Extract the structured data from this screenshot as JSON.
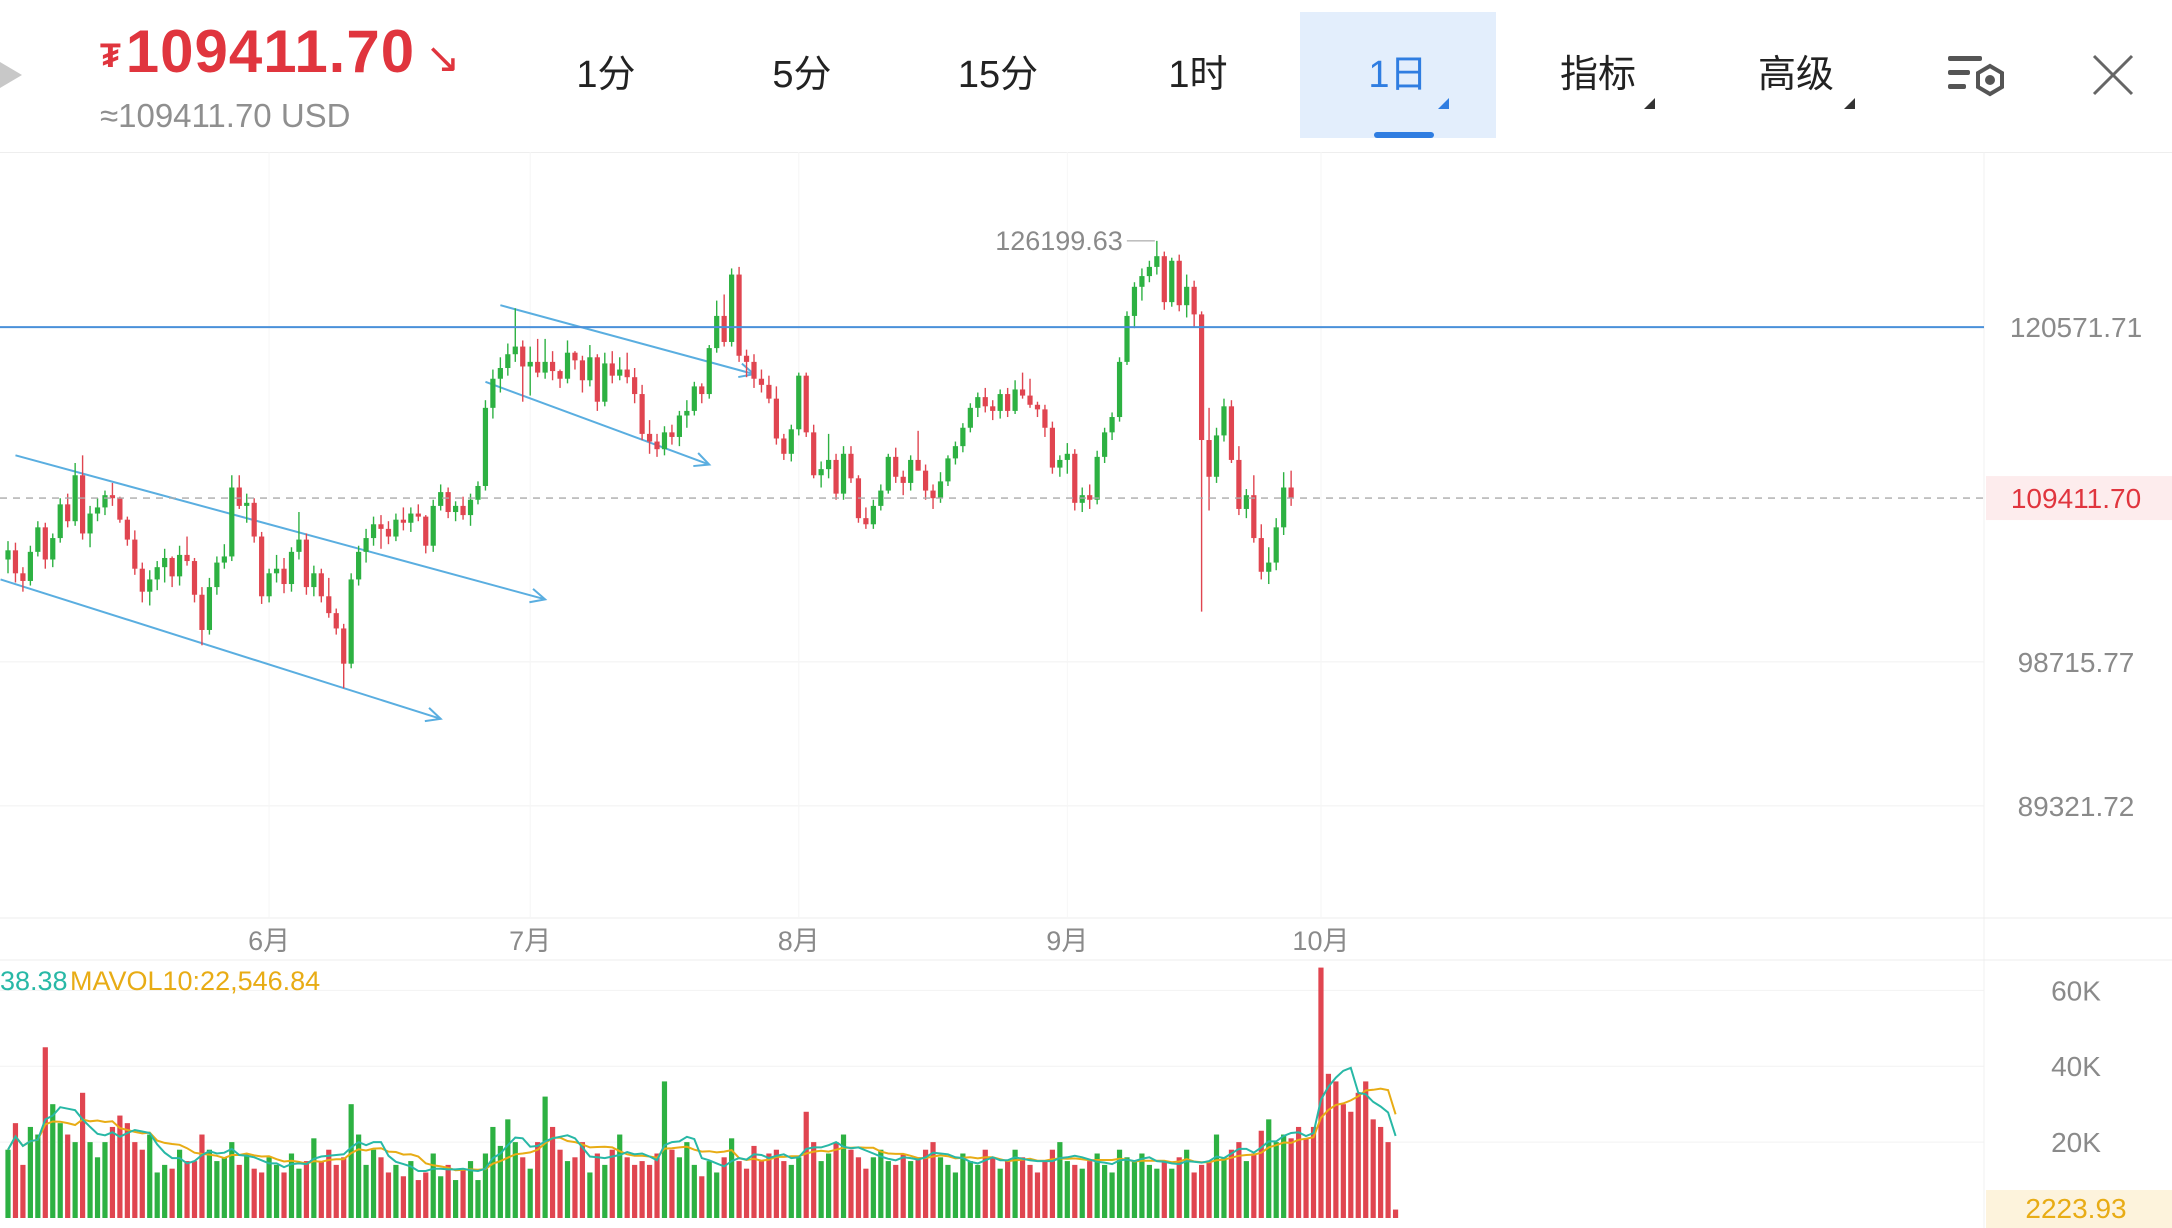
{
  "header": {
    "currency_symbol": "₮",
    "price": "109411.70",
    "trend_arrow": "↘",
    "usd_equiv": "≈109411.70 USD",
    "price_color": "#e0353e"
  },
  "tabs": [
    {
      "label": "1分",
      "active": false,
      "dropdown": false
    },
    {
      "label": "5分",
      "active": false,
      "dropdown": false
    },
    {
      "label": "15分",
      "active": false,
      "dropdown": false
    },
    {
      "label": "1时",
      "active": false,
      "dropdown": false
    },
    {
      "label": "1日",
      "active": true,
      "dropdown": true
    },
    {
      "label": "指标",
      "active": false,
      "dropdown": true
    },
    {
      "label": "高级",
      "active": false,
      "dropdown": true
    }
  ],
  "icons": {
    "play": "play-icon",
    "settings": "chart-settings-icon",
    "close": "close-icon"
  },
  "colors": {
    "up": "#2db142",
    "down": "#e04550",
    "accent": "#2f7de1",
    "trendline": "#5aaee0",
    "mavol5": "#28b8a6",
    "mavol10": "#e8ac15"
  },
  "chart_data": {
    "type": "candlestick",
    "x_labels": [
      "6月",
      "7月",
      "8月",
      "9月",
      "10月"
    ],
    "y_ticks": [
      "120571.71",
      "98715.77",
      "89321.72"
    ],
    "ylim": [
      82000,
      132000
    ],
    "current_price_label": "109411.70",
    "high_annotation": {
      "value": 126199.63,
      "label": "126199.63"
    },
    "horizontal_line": 120571.71,
    "candles": [
      [
        105400,
        106600,
        104500,
        106000
      ],
      [
        106000,
        106500,
        103900,
        104500
      ],
      [
        104500,
        104900,
        103300,
        104000
      ],
      [
        104000,
        106300,
        103700,
        105900
      ],
      [
        105900,
        107900,
        105600,
        107500
      ],
      [
        107500,
        107800,
        104800,
        105400
      ],
      [
        105400,
        107100,
        104900,
        106800
      ],
      [
        106800,
        109400,
        106500,
        109000
      ],
      [
        109000,
        109700,
        107500,
        107900
      ],
      [
        107900,
        111700,
        107600,
        110900
      ],
      [
        110900,
        112200,
        106700,
        107100
      ],
      [
        107100,
        108900,
        106200,
        108400
      ],
      [
        108400,
        109400,
        107900,
        108800
      ],
      [
        108800,
        109900,
        108300,
        109600
      ],
      [
        109600,
        110400,
        108900,
        109400
      ],
      [
        109400,
        109500,
        107800,
        108000
      ],
      [
        108000,
        108200,
        106300,
        106700
      ],
      [
        106700,
        107300,
        104400,
        104800
      ],
      [
        104800,
        105200,
        102600,
        103300
      ],
      [
        103300,
        104700,
        102400,
        104100
      ],
      [
        104100,
        105300,
        103400,
        104900
      ],
      [
        104900,
        106100,
        103900,
        105500
      ],
      [
        105500,
        105600,
        103600,
        104300
      ],
      [
        104300,
        106300,
        103700,
        105700
      ],
      [
        105700,
        106900,
        105000,
        105300
      ],
      [
        105300,
        105500,
        102600,
        103100
      ],
      [
        103100,
        103600,
        99800,
        100800
      ],
      [
        100800,
        104200,
        100500,
        103600
      ],
      [
        103600,
        105600,
        103100,
        105200
      ],
      [
        105200,
        106400,
        104800,
        105600
      ],
      [
        105600,
        110900,
        105300,
        110100
      ],
      [
        110100,
        110900,
        108700,
        108900
      ],
      [
        108900,
        109700,
        107800,
        109100
      ],
      [
        109100,
        109400,
        106500,
        106900
      ],
      [
        106900,
        107200,
        102500,
        103000
      ],
      [
        103000,
        104800,
        102600,
        104500
      ],
      [
        104500,
        105700,
        103900,
        104800
      ],
      [
        104800,
        105500,
        103200,
        103800
      ],
      [
        103800,
        106200,
        103300,
        105900
      ],
      [
        105900,
        108500,
        105400,
        106700
      ],
      [
        106700,
        107100,
        103100,
        103600
      ],
      [
        103600,
        105000,
        103000,
        104500
      ],
      [
        104500,
        104800,
        102600,
        103000
      ],
      [
        103000,
        104200,
        101600,
        101900
      ],
      [
        101900,
        102200,
        100500,
        100900
      ],
      [
        100900,
        101200,
        97000,
        98600
      ],
      [
        98600,
        104500,
        98300,
        104100
      ],
      [
        104100,
        106300,
        103700,
        105900
      ],
      [
        105900,
        107400,
        105200,
        106800
      ],
      [
        106800,
        108200,
        106300,
        107700
      ],
      [
        107700,
        108300,
        106100,
        107400
      ],
      [
        107400,
        107900,
        106400,
        106900
      ],
      [
        106900,
        108400,
        106600,
        108000
      ],
      [
        108000,
        108800,
        107300,
        107800
      ],
      [
        107800,
        108800,
        107200,
        108400
      ],
      [
        108400,
        109000,
        107900,
        108200
      ],
      [
        108200,
        108300,
        105800,
        106300
      ],
      [
        106300,
        109300,
        105900,
        108900
      ],
      [
        108900,
        110300,
        108600,
        109800
      ],
      [
        109800,
        110100,
        108100,
        108500
      ],
      [
        108500,
        109200,
        107900,
        108900
      ],
      [
        108900,
        109500,
        108000,
        108300
      ],
      [
        108300,
        109700,
        107600,
        109300
      ],
      [
        109300,
        110500,
        109000,
        110200
      ],
      [
        110200,
        115800,
        109900,
        115300
      ],
      [
        115300,
        117800,
        114600,
        117200
      ],
      [
        117200,
        118600,
        116300,
        117900
      ],
      [
        117900,
        119500,
        117400,
        118800
      ],
      [
        118800,
        121800,
        118300,
        119300
      ],
      [
        119300,
        119700,
        115700,
        118000
      ],
      [
        118000,
        119300,
        116100,
        118300
      ],
      [
        118300,
        119800,
        117300,
        117600
      ],
      [
        117600,
        119800,
        117200,
        118300
      ],
      [
        118300,
        119000,
        117100,
        117700
      ],
      [
        117700,
        117800,
        116600,
        117200
      ],
      [
        117200,
        119700,
        116900,
        118900
      ],
      [
        118900,
        119000,
        117800,
        118400
      ],
      [
        118400,
        118700,
        116300,
        117100
      ],
      [
        117100,
        119400,
        116700,
        118600
      ],
      [
        118600,
        118800,
        115100,
        115700
      ],
      [
        115700,
        118900,
        115400,
        118200
      ],
      [
        118200,
        119000,
        116900,
        117400
      ],
      [
        117400,
        118600,
        117100,
        117800
      ],
      [
        117800,
        118900,
        116900,
        117300
      ],
      [
        117300,
        117900,
        115600,
        116200
      ],
      [
        116200,
        116800,
        113200,
        113600
      ],
      [
        113600,
        114500,
        112300,
        113100
      ],
      [
        113100,
        113600,
        112100,
        112600
      ],
      [
        112600,
        114100,
        112200,
        113700
      ],
      [
        113700,
        114200,
        112900,
        113400
      ],
      [
        113400,
        115100,
        112800,
        114800
      ],
      [
        114800,
        115800,
        114000,
        115100
      ],
      [
        115100,
        117000,
        114800,
        116700
      ],
      [
        116700,
        116900,
        115600,
        116200
      ],
      [
        116200,
        119400,
        115900,
        119200
      ],
      [
        119200,
        122300,
        118900,
        121300
      ],
      [
        121300,
        122700,
        119300,
        119600
      ],
      [
        119600,
        124400,
        119300,
        124000
      ],
      [
        124000,
        124500,
        118300,
        118700
      ],
      [
        118700,
        119100,
        117300,
        118300
      ],
      [
        118300,
        118800,
        116600,
        117200
      ],
      [
        117200,
        117800,
        116300,
        116800
      ],
      [
        116800,
        117400,
        115600,
        115900
      ],
      [
        115900,
        116700,
        112900,
        113300
      ],
      [
        113300,
        113600,
        111900,
        112300
      ],
      [
        112300,
        114200,
        111800,
        113900
      ],
      [
        113900,
        117600,
        113500,
        117400
      ],
      [
        117400,
        117600,
        113400,
        113700
      ],
      [
        113700,
        114200,
        110700,
        110900
      ],
      [
        110900,
        111800,
        110100,
        111300
      ],
      [
        111300,
        113600,
        110700,
        111900
      ],
      [
        111900,
        112300,
        109300,
        109700
      ],
      [
        109700,
        112800,
        109300,
        112300
      ],
      [
        112300,
        112800,
        110400,
        110700
      ],
      [
        110700,
        110900,
        107800,
        108100
      ],
      [
        108100,
        108800,
        107400,
        107700
      ],
      [
        107700,
        109300,
        107400,
        108900
      ],
      [
        108900,
        110300,
        108600,
        109900
      ],
      [
        109900,
        112300,
        109700,
        112100
      ],
      [
        112100,
        112700,
        110400,
        110800
      ],
      [
        110800,
        111200,
        109600,
        110400
      ],
      [
        110400,
        112200,
        109900,
        111900
      ],
      [
        111900,
        113800,
        111200,
        111200
      ],
      [
        111200,
        111600,
        109300,
        109900
      ],
      [
        109900,
        110300,
        108700,
        109400
      ],
      [
        109400,
        111100,
        109100,
        110500
      ],
      [
        110500,
        112200,
        110200,
        112000
      ],
      [
        112000,
        113100,
        111600,
        112800
      ],
      [
        112800,
        114300,
        112400,
        114000
      ],
      [
        114000,
        115600,
        113700,
        115300
      ],
      [
        115300,
        116300,
        114700,
        116000
      ],
      [
        116000,
        116600,
        115000,
        115400
      ],
      [
        115400,
        115800,
        114500,
        115100
      ],
      [
        115100,
        116500,
        114600,
        116200
      ],
      [
        116200,
        116600,
        114700,
        115100
      ],
      [
        115100,
        117100,
        114900,
        116500
      ],
      [
        116500,
        117600,
        115900,
        116100
      ],
      [
        116100,
        117200,
        115300,
        115500
      ],
      [
        115500,
        115700,
        114700,
        115200
      ],
      [
        115200,
        115500,
        113400,
        114000
      ],
      [
        114000,
        114400,
        111000,
        111400
      ],
      [
        111400,
        112200,
        110800,
        111900
      ],
      [
        111900,
        113000,
        111000,
        112300
      ],
      [
        112300,
        112600,
        108600,
        109100
      ],
      [
        109100,
        110100,
        108500,
        109600
      ],
      [
        109600,
        110300,
        108700,
        109300
      ],
      [
        109300,
        112500,
        109000,
        112100
      ],
      [
        112100,
        114000,
        111700,
        113700
      ],
      [
        113700,
        115000,
        113200,
        114700
      ],
      [
        114700,
        118600,
        114400,
        118300
      ],
      [
        118300,
        121600,
        118100,
        121300
      ],
      [
        121300,
        123500,
        120500,
        123200
      ],
      [
        123200,
        124400,
        122300,
        123900
      ],
      [
        123900,
        124900,
        123500,
        124500
      ],
      [
        124500,
        126199.63,
        124000,
        125200
      ],
      [
        125200,
        125500,
        121700,
        122200
      ],
      [
        122200,
        125100,
        121900,
        124900
      ],
      [
        124900,
        125300,
        121600,
        122000
      ],
      [
        122000,
        124000,
        121200,
        123200
      ],
      [
        123200,
        123600,
        120600,
        121400
      ],
      [
        121400,
        121600,
        102000,
        113200
      ],
      [
        113200,
        115300,
        108600,
        110800
      ],
      [
        110800,
        114000,
        110400,
        113500
      ],
      [
        113500,
        115900,
        113100,
        115400
      ],
      [
        115400,
        115800,
        111700,
        111900
      ],
      [
        111900,
        112800,
        108300,
        108700
      ],
      [
        108700,
        110000,
        108100,
        109600
      ],
      [
        109600,
        110900,
        106500,
        106800
      ],
      [
        106800,
        107700,
        104100,
        104600
      ],
      [
        104600,
        106200,
        103800,
        105200
      ],
      [
        105200,
        108100,
        104700,
        107500
      ],
      [
        107500,
        111100,
        107000,
        110100
      ],
      [
        110100,
        111200,
        108900,
        109411.7
      ]
    ],
    "volume": {
      "label_mavol5": "38.38",
      "label_mavol10": "MAVOL10:22,546.84",
      "y_ticks": [
        "60K",
        "40K",
        "20K"
      ],
      "ylim": [
        0,
        68000
      ],
      "last_value_label": "2223.93",
      "values": [
        18000,
        25000,
        14000,
        24000,
        22000,
        45000,
        30000,
        25000,
        22000,
        20000,
        33000,
        20000,
        16000,
        20000,
        24000,
        27000,
        25000,
        20000,
        18000,
        22000,
        12000,
        14000,
        13000,
        18000,
        15000,
        15000,
        22000,
        18000,
        15000,
        16000,
        20000,
        14000,
        17000,
        13000,
        12000,
        16000,
        14000,
        12000,
        17000,
        13000,
        15000,
        21000,
        15000,
        18000,
        14000,
        16000,
        30000,
        22000,
        14000,
        18000,
        16000,
        12000,
        14000,
        11000,
        15000,
        10000,
        12000,
        17000,
        11000,
        14000,
        10000,
        13000,
        15000,
        10000,
        17000,
        24000,
        19000,
        26000,
        20000,
        16000,
        13000,
        20000,
        32000,
        24000,
        18000,
        15000,
        16000,
        20000,
        12000,
        17000,
        14000,
        18000,
        22000,
        16000,
        14000,
        15000,
        14000,
        17000,
        36000,
        18000,
        16000,
        20000,
        14000,
        11000,
        15000,
        12000,
        16000,
        21000,
        15000,
        13000,
        19000,
        15000,
        17000,
        18000,
        15000,
        14000,
        16000,
        28000,
        20000,
        15000,
        17000,
        20000,
        22000,
        18000,
        16000,
        13000,
        16000,
        18000,
        15000,
        14000,
        17000,
        15000,
        16000,
        18000,
        20000,
        16000,
        14000,
        12000,
        17000,
        15000,
        14000,
        18000,
        16000,
        13000,
        15000,
        18000,
        16000,
        14000,
        12000,
        15000,
        18000,
        20000,
        15000,
        14000,
        13000,
        15000,
        17000,
        14000,
        12000,
        18000,
        16000,
        15000,
        17000,
        14000,
        13000,
        15000,
        13000,
        16000,
        18000,
        12000,
        14000,
        15000,
        22000,
        16000,
        18000,
        20000,
        15000,
        17000,
        23000,
        26000,
        20000,
        22000,
        21000,
        24000,
        21000,
        24000,
        66000,
        38000,
        36000,
        30000,
        28000,
        33000,
        36000,
        26000,
        24000,
        20000,
        2224
      ],
      "mavol5_color": "#28b8a6",
      "mavol10_color": "#e8ac15"
    }
  }
}
